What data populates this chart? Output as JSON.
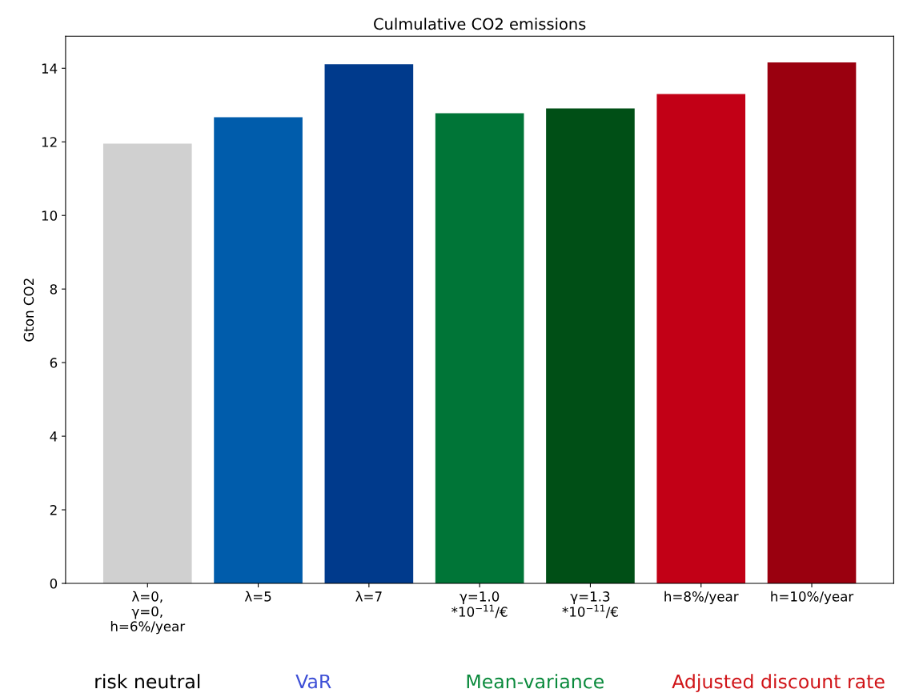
{
  "chart_data": {
    "type": "bar",
    "title": "Culmulative CO2 emissions",
    "ylabel": "Gton CO2",
    "categories": [
      "λ=0,\nγ=0,\nh=6%/year",
      "λ=5",
      "λ=7",
      "γ=1.0\n*10$^{−11}$/€",
      "γ=1.3\n*10$^{−11}$/€",
      "h=8%/year",
      "h=10%/year"
    ],
    "values": [
      11.95,
      12.67,
      14.11,
      12.78,
      12.91,
      13.3,
      14.16
    ],
    "colors": [
      "#d0d0d0",
      "#005cab",
      "#003a8c",
      "#007537",
      "#004f16",
      "#c20016",
      "#9a000f"
    ],
    "ylim": [
      0,
      14.87
    ],
    "yticks": [
      0,
      2,
      4,
      6,
      8,
      10,
      12,
      14
    ],
    "grid": false,
    "annotations": [
      "risk neutral",
      "VaR",
      "Mean-variance",
      "Adjusted discount rate"
    ]
  }
}
